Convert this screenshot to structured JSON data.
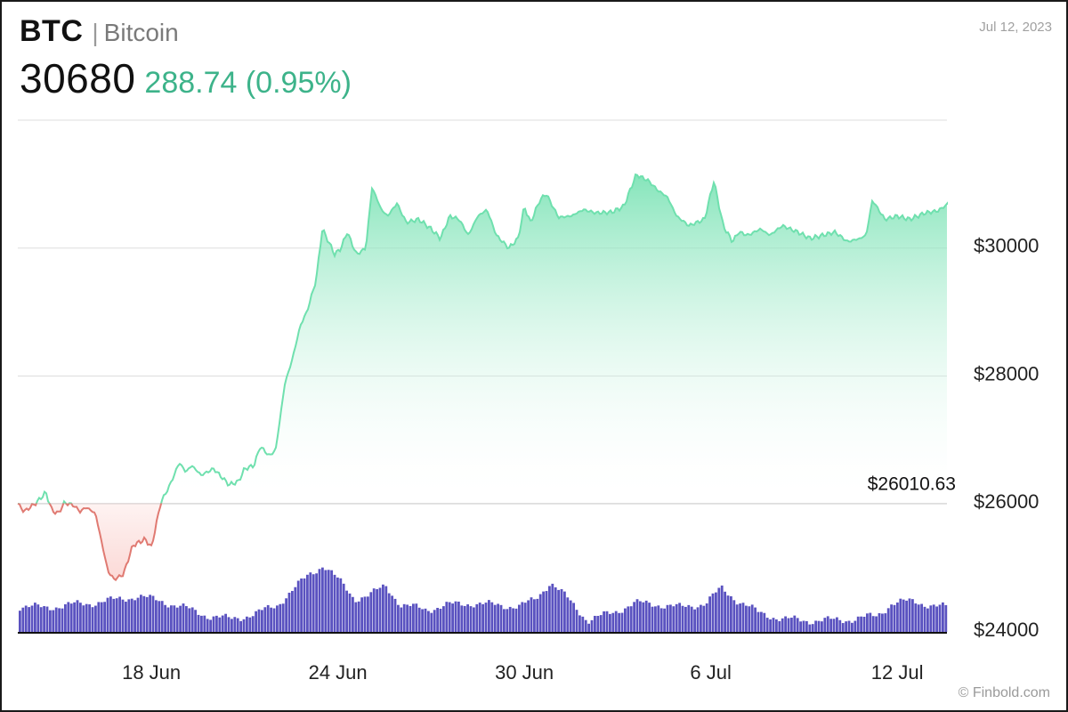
{
  "header": {
    "symbol": "BTC",
    "separator": "|",
    "name": "Bitcoin",
    "price": "30680",
    "change": "288.74 (0.95%)",
    "date": "Jul 12, 2023",
    "watermark": "© Finbold.com"
  },
  "colors": {
    "up_line": "#6fe0ae",
    "up_fill": "#d9f7ea",
    "down_line": "#e07a72",
    "down_fill": "#fbd6d3",
    "change_text": "#3db38a",
    "volume": "#5a52c0",
    "grid": "#dddddd",
    "axis": "#111111"
  },
  "chart_data": {
    "type": "line",
    "title": "",
    "xlabel": "",
    "ylabel": "",
    "x_ticks": [
      "18 Jun",
      "24 Jun",
      "30 Jun",
      "6 Jul",
      "12 Jul"
    ],
    "x_tick_days": [
      18,
      24,
      30,
      36,
      42
    ],
    "xlim": [
      13.7,
      43.6
    ],
    "y_ticks": [
      "$24000",
      "$26000",
      "$28000",
      "$30000"
    ],
    "y_tick_values": [
      24000,
      26000,
      28000,
      30000
    ],
    "ylim": [
      24000,
      32000
    ],
    "reference_value": 26010.63,
    "reference_label": "$26010.63",
    "series": [
      {
        "name": "",
        "x": [
          13.7,
          13.9,
          14.1,
          14.3,
          14.6,
          14.8,
          15.0,
          15.2,
          15.5,
          15.7,
          15.9,
          16.2,
          16.6,
          16.8,
          17.1,
          17.4,
          17.8,
          18.0,
          18.3,
          18.6,
          18.9,
          19.1,
          19.3,
          19.6,
          20.0,
          20.3,
          20.5,
          20.8,
          21.0,
          21.3,
          21.5,
          21.8,
          22.0,
          22.3,
          22.5,
          22.8,
          23.0,
          23.3,
          23.5,
          23.9,
          24.1,
          24.3,
          24.6,
          24.9,
          25.1,
          25.4,
          25.6,
          25.9,
          26.2,
          26.6,
          27.0,
          27.3,
          27.6,
          27.9,
          28.2,
          28.5,
          28.8,
          29.1,
          29.5,
          29.8,
          30.0,
          30.2,
          30.5,
          30.7,
          31.1,
          31.5,
          31.9,
          32.3,
          32.8,
          33.2,
          33.6,
          34.0,
          34.3,
          34.6,
          34.9,
          35.3,
          35.8,
          36.1,
          36.4,
          36.7,
          36.9,
          37.2,
          37.6,
          37.9,
          38.3,
          38.8,
          39.2,
          39.6,
          40.0,
          40.4,
          40.8,
          41.0,
          41.2,
          41.6,
          42.0,
          42.4,
          42.9,
          43.3,
          43.6
        ],
        "y": [
          26010,
          25880,
          25950,
          26020,
          26180,
          25900,
          25850,
          26020,
          25980,
          25880,
          25950,
          25850,
          24950,
          24820,
          24900,
          25350,
          25450,
          25320,
          26020,
          26300,
          26650,
          26500,
          26600,
          26450,
          26550,
          26400,
          26300,
          26350,
          26550,
          26600,
          26900,
          26750,
          26850,
          27900,
          28200,
          28800,
          29000,
          29500,
          30300,
          29900,
          30000,
          30250,
          29900,
          30000,
          30950,
          30600,
          30500,
          30700,
          30400,
          30450,
          30300,
          30150,
          30500,
          30450,
          30200,
          30500,
          30600,
          30200,
          30000,
          30150,
          30650,
          30400,
          30750,
          30850,
          30480,
          30500,
          30600,
          30550,
          30560,
          30650,
          31150,
          31050,
          30900,
          30800,
          30500,
          30350,
          30450,
          31050,
          30350,
          30100,
          30250,
          30200,
          30300,
          30200,
          30350,
          30250,
          30150,
          30200,
          30250,
          30100,
          30150,
          30200,
          30750,
          30450,
          30500,
          30450,
          30550,
          30580,
          30680
        ]
      },
      {
        "name": "",
        "type": "bar",
        "x": [
          13.7,
          14.5,
          15.3,
          16.0,
          16.8,
          17.5,
          18.3,
          19.0,
          19.8,
          20.5,
          21.3,
          22.0,
          22.5,
          23.0,
          23.5,
          24.0,
          24.5,
          25.0,
          25.5,
          26.0,
          26.8,
          27.5,
          28.3,
          29.0,
          29.8,
          30.3,
          30.8,
          31.3,
          32.0,
          32.8,
          33.5,
          34.3,
          35.0,
          35.8,
          36.3,
          36.8,
          37.5,
          38.3,
          39.0,
          39.8,
          40.5,
          41.3,
          41.8,
          42.5,
          43.2,
          43.6
        ],
        "y": [
          24400,
          24380,
          24420,
          24450,
          24500,
          24560,
          24480,
          24380,
          24250,
          24200,
          24280,
          24420,
          24650,
          24880,
          25050,
          24800,
          24520,
          24580,
          24720,
          24420,
          24350,
          24420,
          24450,
          24420,
          24400,
          24500,
          24780,
          24550,
          24180,
          24300,
          24450,
          24430,
          24380,
          24450,
          24680,
          24500,
          24300,
          24200,
          24180,
          24180,
          24200,
          24250,
          24450,
          24480,
          24400,
          24380
        ]
      }
    ]
  }
}
